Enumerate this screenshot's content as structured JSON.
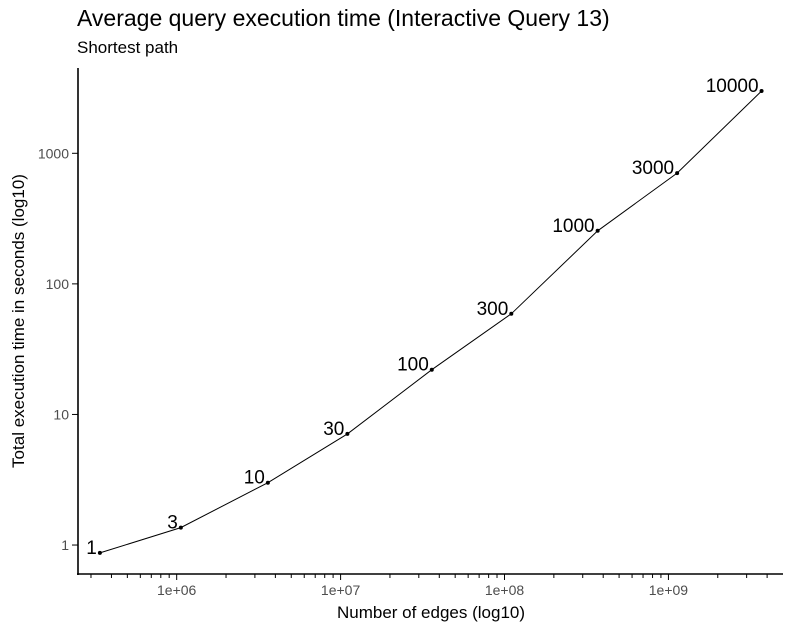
{
  "chart_data": {
    "type": "line",
    "title": "Average query execution time (Interactive Query 13)",
    "subtitle": "Shortest path",
    "xlabel": "Number of edges (log10)",
    "ylabel": "Total execution time in seconds (log10)",
    "x_scale": "log10",
    "y_scale": "log10",
    "xlim": [
      250000,
      5000000000
    ],
    "ylim": [
      0.6,
      4500
    ],
    "grid": false,
    "x_ticks": [
      {
        "value": 1000000,
        "label": "1e+06"
      },
      {
        "value": 10000000,
        "label": "1e+07"
      },
      {
        "value": 100000000,
        "label": "1e+08"
      },
      {
        "value": 1000000000,
        "label": "1e+09"
      }
    ],
    "y_ticks": [
      {
        "value": 1,
        "label": "1"
      },
      {
        "value": 10,
        "label": "10"
      },
      {
        "value": 100,
        "label": "100"
      },
      {
        "value": 1000,
        "label": "1000"
      }
    ],
    "points": [
      {
        "label": "1",
        "x": 340000,
        "y": 0.87
      },
      {
        "label": "3",
        "x": 1060000,
        "y": 1.36
      },
      {
        "label": "10",
        "x": 3600000,
        "y": 3.0
      },
      {
        "label": "30",
        "x": 11000000,
        "y": 7.1
      },
      {
        "label": "100",
        "x": 36000000,
        "y": 22
      },
      {
        "label": "300",
        "x": 110000000,
        "y": 59
      },
      {
        "label": "1000",
        "x": 370000000,
        "y": 255
      },
      {
        "label": "3000",
        "x": 1130000000,
        "y": 705
      },
      {
        "label": "10000",
        "x": 3700000000,
        "y": 3000
      }
    ]
  }
}
